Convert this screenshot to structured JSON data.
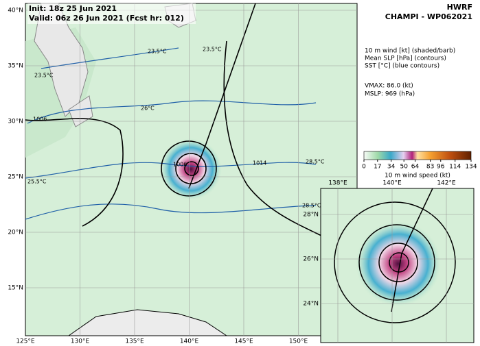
{
  "header": {
    "init": "Init:  18z 25 Jun 2021",
    "valid": "Valid: 06z 26 Jun 2021 (Fcst hr: 012)",
    "model": "HWRF",
    "storm": "CHAMPI - WP062021"
  },
  "legend": {
    "line1": "10 m wind [kt] (shaded/barb)",
    "line2": "Mean SLP [hPa] (contours)",
    "line3": "SST [°C] (blue contours)",
    "vmax": "VMAX:  86.0 (kt)",
    "mslp": "MSLP:  969 (hPa)"
  },
  "colorbar": {
    "ticks": [
      0,
      17,
      34,
      50,
      64,
      83,
      96,
      114,
      134
    ],
    "label": "10 m wind speed (kt)"
  },
  "main_map": {
    "lon_labels": [
      "125°E",
      "130°E",
      "135°E",
      "140°E",
      "145°E",
      "150°E"
    ],
    "lat_labels": [
      "40°N",
      "35°N",
      "30°N",
      "25°N",
      "20°N",
      "15°N"
    ],
    "contour_labels": [
      "1006",
      "1006",
      "1014",
      "23.5°C",
      "23.5°C",
      "23.5°C",
      "26°C",
      "28.5°C",
      "28.5°C",
      "25.5°C"
    ]
  },
  "inset_map": {
    "lon_labels": [
      "138°E",
      "140°E",
      "142°E"
    ],
    "lat_labels": [
      "28°N",
      "26°N",
      "24°N"
    ]
  }
}
